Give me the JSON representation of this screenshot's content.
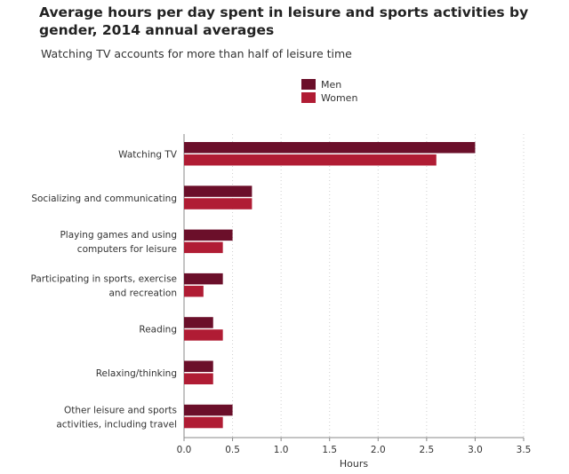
{
  "chart_data": {
    "type": "bar",
    "orientation": "horizontal",
    "title": "Average hours per day spent in leisure and sports activities by gender, 2014 annual averages",
    "subtitle": "Watching TV accounts for more than half of leisure time",
    "xlabel": "Hours",
    "xlim": [
      0,
      3.5
    ],
    "xticks": [
      "0.0",
      "0.5",
      "1.0",
      "1.5",
      "2.0",
      "2.5",
      "3.0",
      "3.5"
    ],
    "grid": "vertical dotted",
    "legend_position": "top-center",
    "categories": [
      [
        "Watching TV"
      ],
      [
        "Socializing and communicating"
      ],
      [
        "Playing games and using",
        "computers for leisure"
      ],
      [
        "Participating in sports, exercise",
        "and recreation"
      ],
      [
        "Reading"
      ],
      [
        "Relaxing/thinking"
      ],
      [
        "Other leisure and sports",
        "activities, including travel"
      ]
    ],
    "series": [
      {
        "name": "Men",
        "color": "#6b0f2a",
        "values": [
          3.0,
          0.7,
          0.5,
          0.4,
          0.3,
          0.3,
          0.5
        ]
      },
      {
        "name": "Women",
        "color": "#b01c34",
        "values": [
          2.6,
          0.7,
          0.4,
          0.2,
          0.4,
          0.3,
          0.4
        ]
      }
    ]
  }
}
